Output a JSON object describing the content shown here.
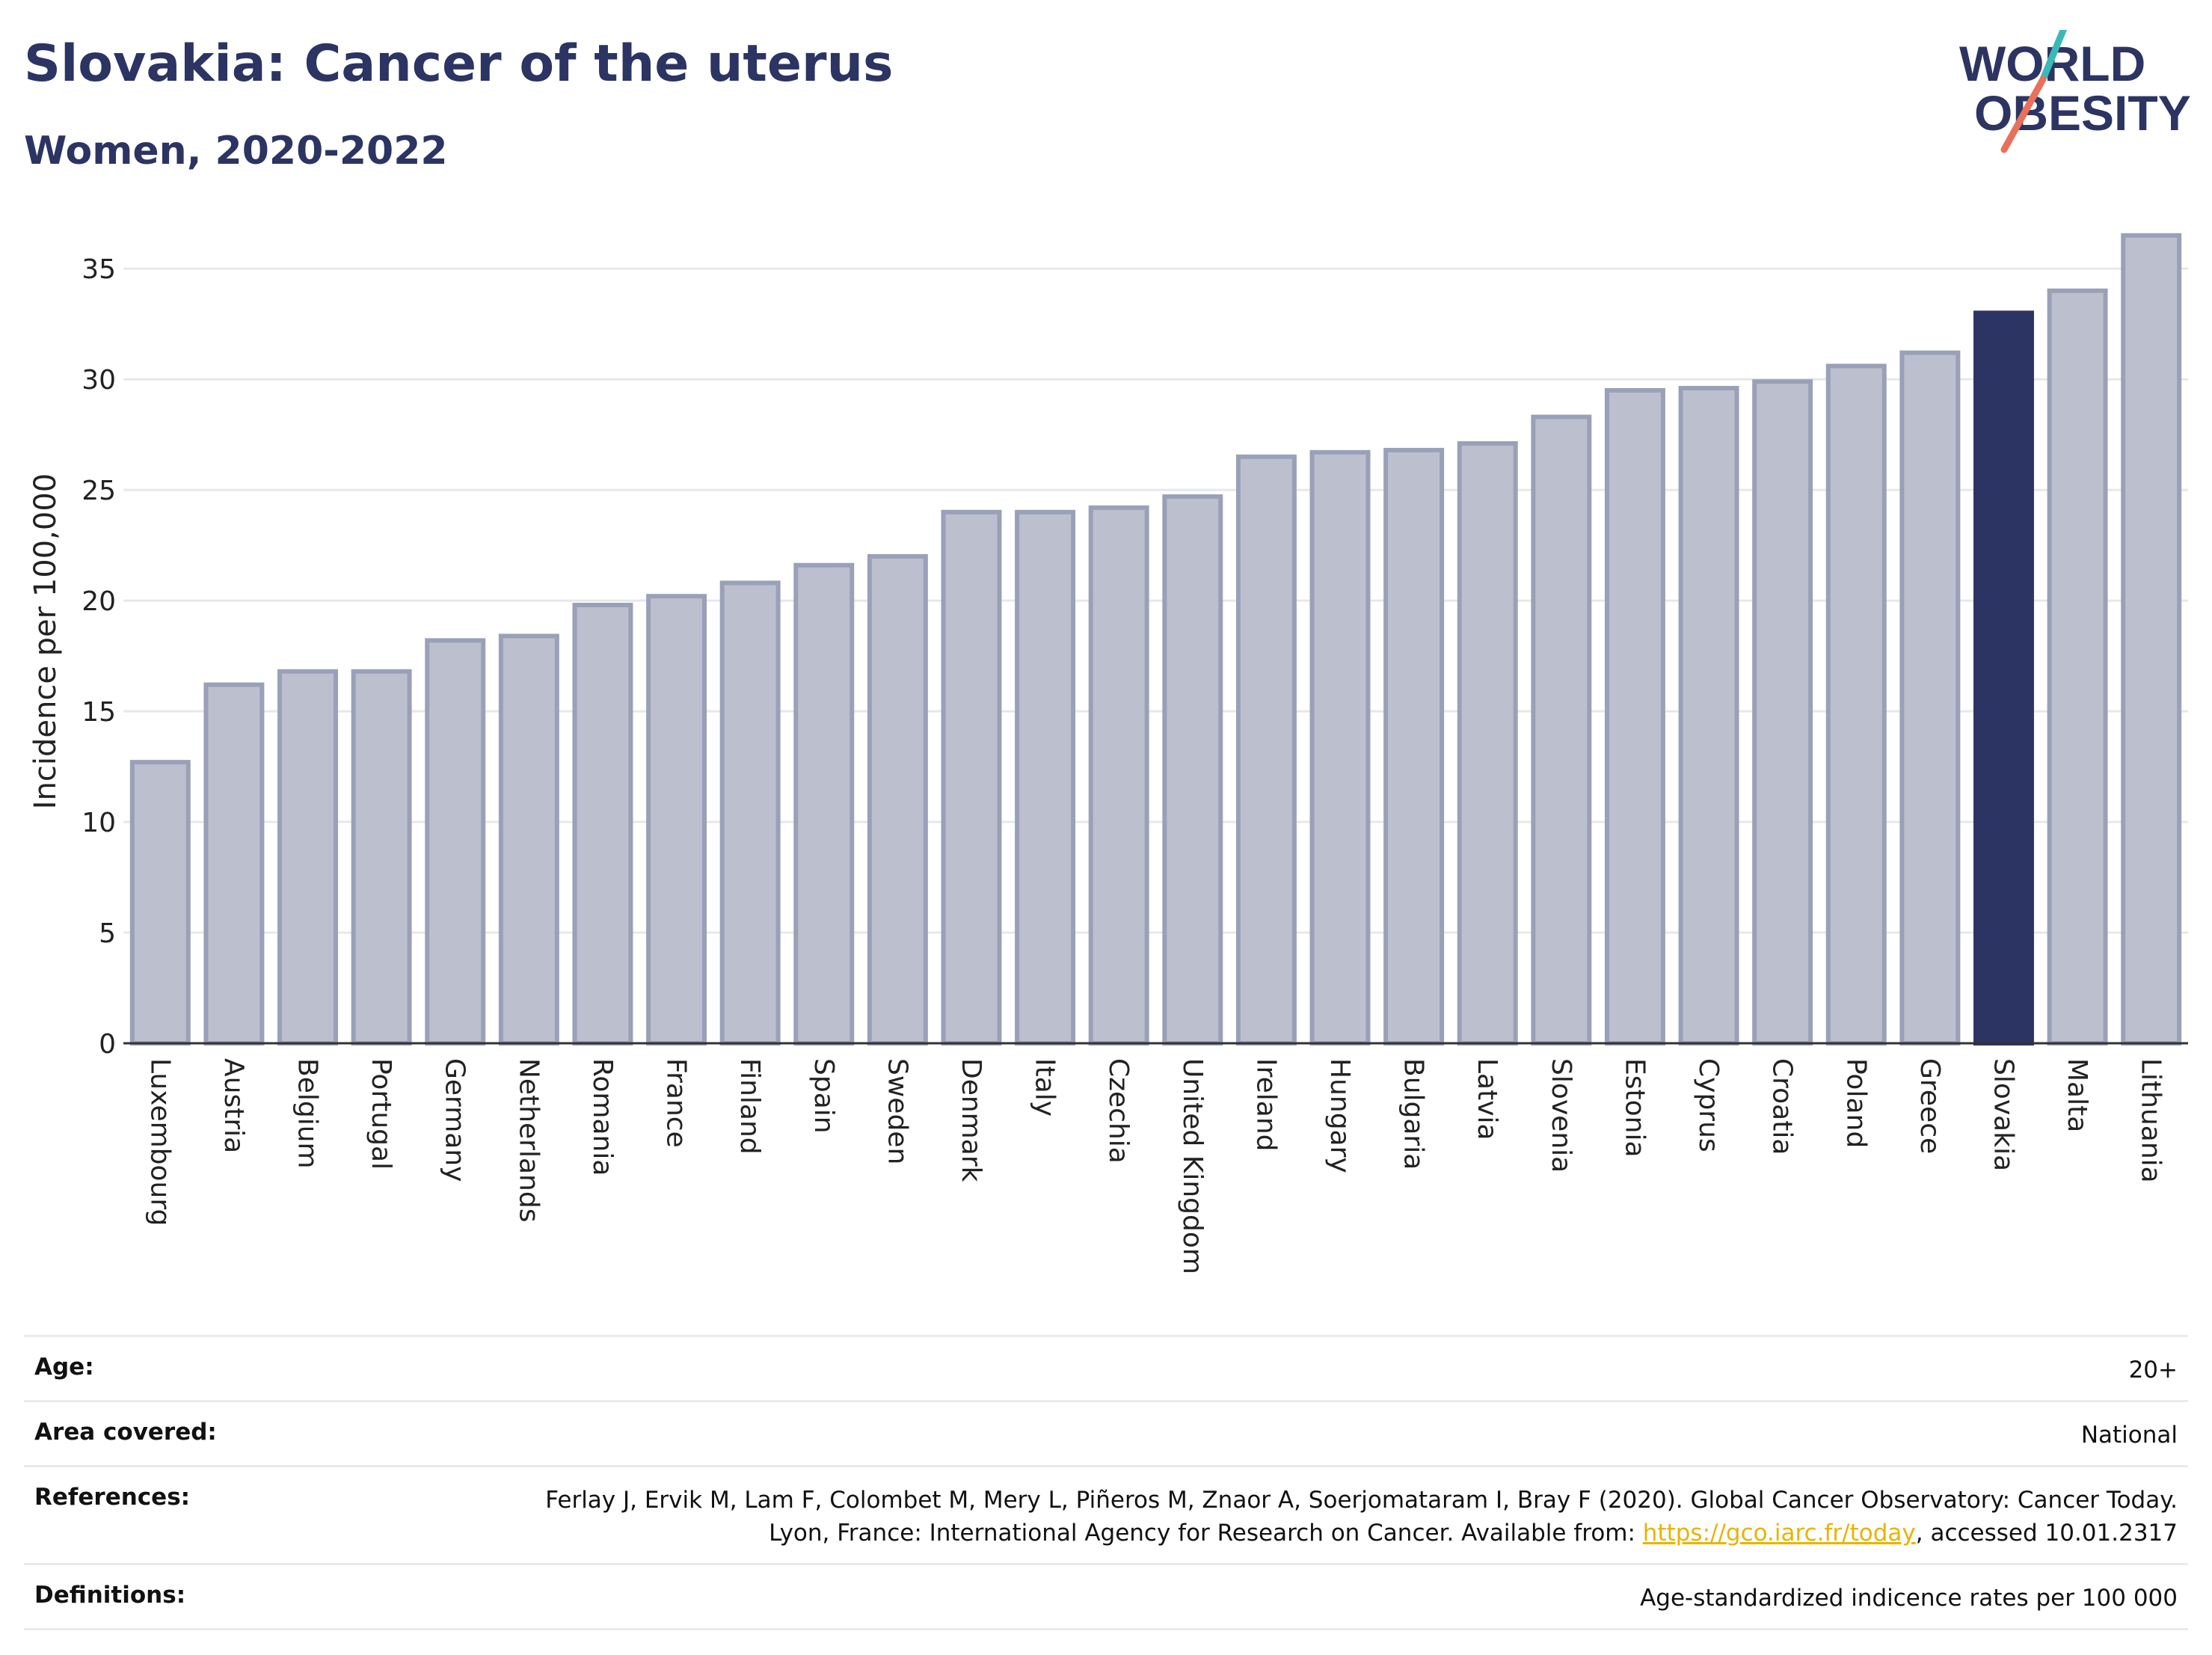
{
  "header": {
    "title": "Slovakia: Cancer of the uterus",
    "subtitle": "Women, 2020-2022",
    "logo_line1": "WORLD",
    "logo_line2": "OBESITY"
  },
  "colors": {
    "title": "#2b3462",
    "bar_default": "#bcc0ce",
    "bar_default_stroke": "#9aa0b8",
    "bar_highlight": "#2b3462",
    "grid": "#e6e8ec",
    "logo_slash_teal": "#3cb8b8",
    "logo_slash_coral": "#e9705a",
    "link": "#e8b400"
  },
  "chart_data": {
    "type": "bar",
    "title": "Slovakia: Cancer of the uterus",
    "subtitle": "Women, 2020-2022",
    "ylabel": "Incidence per 100,000",
    "xlabel": "",
    "ylim": [
      0,
      37
    ],
    "yticks": [
      0,
      5,
      10,
      15,
      20,
      25,
      30,
      35
    ],
    "grid": true,
    "highlight": "Slovakia",
    "categories": [
      "Luxembourg",
      "Austria",
      "Belgium",
      "Portugal",
      "Germany",
      "Netherlands",
      "Romania",
      "France",
      "Finland",
      "Spain",
      "Sweden",
      "Denmark",
      "Italy",
      "Czechia",
      "United Kingdom",
      "Ireland",
      "Hungary",
      "Bulgaria",
      "Latvia",
      "Slovenia",
      "Estonia",
      "Cyprus",
      "Croatia",
      "Poland",
      "Greece",
      "Slovakia",
      "Malta",
      "Lithuania"
    ],
    "values": [
      12.7,
      16.2,
      16.8,
      16.8,
      18.2,
      18.4,
      19.8,
      20.2,
      20.8,
      21.6,
      22.0,
      24.0,
      24.0,
      24.2,
      24.7,
      26.5,
      26.7,
      26.8,
      27.1,
      28.3,
      29.5,
      29.6,
      29.9,
      30.6,
      31.2,
      33.0,
      34.0,
      36.5
    ]
  },
  "meta": {
    "age_label": "Age:",
    "age_value": "20+",
    "area_label": "Area covered:",
    "area_value": "National",
    "references_label": "References:",
    "references_text_1": "Ferlay J, Ervik M, Lam F, Colombet M, Mery L, Piñeros M, Znaor A, Soerjomataram I, Bray F (2020). Global Cancer Observatory: Cancer Today. Lyon, France: International Agency for Research on Cancer. Available from: ",
    "references_link": "https://gco.iarc.fr/today",
    "references_text_2": ", accessed 10.01.2317",
    "definitions_label": "Definitions:",
    "definitions_value": "Age-standardized indicence rates per 100 000"
  }
}
